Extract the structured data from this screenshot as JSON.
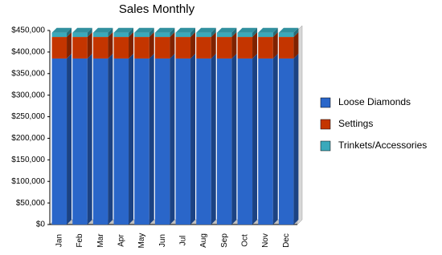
{
  "chart_data": {
    "type": "bar",
    "stacked": true,
    "title": "Sales Monthly",
    "categories": [
      "Jan",
      "Feb",
      "Mar",
      "Apr",
      "May",
      "Jun",
      "Jul",
      "Aug",
      "Sep",
      "Oct",
      "Nov",
      "Dec"
    ],
    "series": [
      {
        "name": "Loose Diamonds",
        "color": "#2a66c9",
        "values": [
          385000,
          385000,
          385000,
          385000,
          385000,
          385000,
          385000,
          385000,
          385000,
          385000,
          385000,
          385000
        ]
      },
      {
        "name": "Settings",
        "color": "#c43500",
        "values": [
          50000,
          50000,
          50000,
          50000,
          50000,
          50000,
          50000,
          50000,
          50000,
          50000,
          50000,
          50000
        ]
      },
      {
        "name": "Trinkets/Accessories",
        "color": "#3aa9bb",
        "values": [
          10000,
          10000,
          10000,
          10000,
          10000,
          10000,
          10000,
          10000,
          10000,
          10000,
          10000,
          10000
        ]
      }
    ],
    "ylim": [
      0,
      450000
    ],
    "yticks": [
      {
        "value": 0,
        "label": "$0"
      },
      {
        "value": 50000,
        "label": "$50,000"
      },
      {
        "value": 100000,
        "label": "$100,000"
      },
      {
        "value": 150000,
        "label": "$150,000"
      },
      {
        "value": 200000,
        "label": "$200,000"
      },
      {
        "value": 250000,
        "label": "$250,000"
      },
      {
        "value": 300000,
        "label": "$300,000"
      },
      {
        "value": 350000,
        "label": "$350,000"
      },
      {
        "value": 400000,
        "label": "$400,000"
      },
      {
        "value": 450000,
        "label": "$450,000"
      }
    ],
    "grid": false,
    "legend": "right"
  }
}
